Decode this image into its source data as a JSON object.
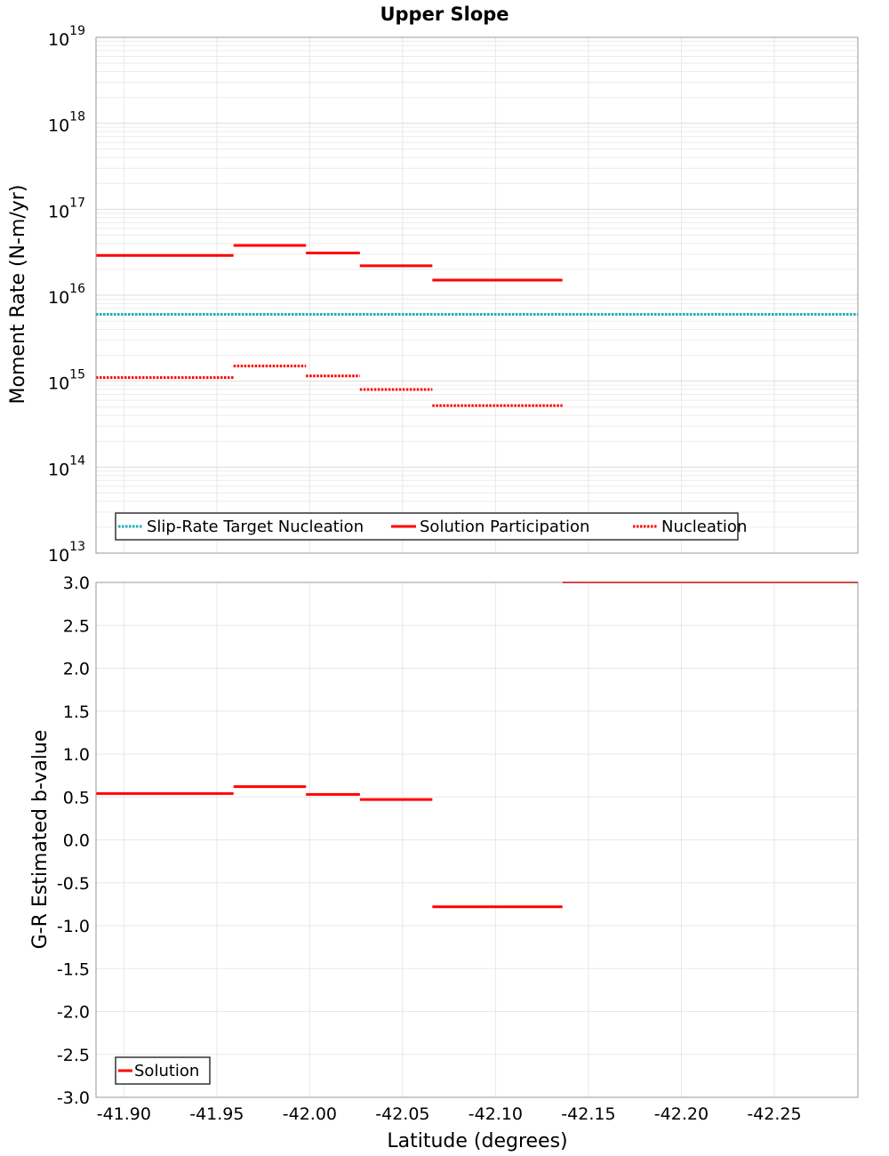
{
  "chart_data": [
    {
      "type": "line",
      "title": "Upper Slope",
      "ylabel": "Moment Rate (N-m/yr)",
      "xlabel": "",
      "yscale": "log",
      "ylim": [
        10000000000000.0,
        1e+19
      ],
      "xlim": [
        -41.885,
        -42.295
      ],
      "x_reversed": true,
      "grid": true,
      "y_ticks": [
        {
          "value": 10000000000000.0,
          "base": "10",
          "exp": "13"
        },
        {
          "value": 100000000000000.0,
          "base": "10",
          "exp": "14"
        },
        {
          "value": 1000000000000000.0,
          "base": "10",
          "exp": "15"
        },
        {
          "value": 1e+16,
          "base": "10",
          "exp": "16"
        },
        {
          "value": 1e+17,
          "base": "10",
          "exp": "17"
        },
        {
          "value": 1e+18,
          "base": "10",
          "exp": "18"
        },
        {
          "value": 1e+19,
          "base": "10",
          "exp": "19"
        }
      ],
      "legend_position": "bottom-left",
      "series": [
        {
          "name": "Slip-Rate Target Nucleation",
          "color": "#1aaeb8",
          "style": "dotted",
          "segments": [
            {
              "x0": -41.885,
              "x1": -42.295,
              "y": 6000000000000000.0
            }
          ]
        },
        {
          "name": "Solution Participation",
          "color": "#ff0000",
          "style": "solid",
          "segments": [
            {
              "x0": -41.885,
              "x1": -41.959,
              "y": 2.9e+16
            },
            {
              "x0": -41.959,
              "x1": -41.998,
              "y": 3.8e+16
            },
            {
              "x0": -41.998,
              "x1": -42.027,
              "y": 3.1e+16
            },
            {
              "x0": -42.027,
              "x1": -42.066,
              "y": 2.2e+16
            },
            {
              "x0": -42.066,
              "x1": -42.136,
              "y": 1.5e+16
            }
          ]
        },
        {
          "name": "Nucleation",
          "color": "#ff0000",
          "style": "dotted",
          "segments": [
            {
              "x0": -41.885,
              "x1": -41.959,
              "y": 1100000000000000.0
            },
            {
              "x0": -41.959,
              "x1": -41.998,
              "y": 1500000000000000.0
            },
            {
              "x0": -41.998,
              "x1": -42.027,
              "y": 1150000000000000.0
            },
            {
              "x0": -42.027,
              "x1": -42.066,
              "y": 800000000000000.0
            },
            {
              "x0": -42.066,
              "x1": -42.136,
              "y": 520000000000000.0
            }
          ]
        }
      ]
    },
    {
      "type": "line",
      "title": "",
      "ylabel": "G-R Estimated b-value",
      "xlabel": "Latitude (degrees)",
      "ylim": [
        -3.0,
        3.0
      ],
      "xlim": [
        -41.885,
        -42.295
      ],
      "x_reversed": true,
      "grid": true,
      "y_ticks": [
        "3.0",
        "2.5",
        "2.0",
        "1.5",
        "1.0",
        "0.5",
        "0.0",
        "-0.5",
        "-1.0",
        "-1.5",
        "-2.0",
        "-2.5",
        "-3.0"
      ],
      "x_ticks": [
        "-41.90",
        "-41.95",
        "-42.00",
        "-42.05",
        "-42.10",
        "-42.15",
        "-42.20",
        "-42.25"
      ],
      "legend_position": "bottom-left",
      "series": [
        {
          "name": "Solution",
          "color": "#ff0000",
          "style": "solid",
          "segments": [
            {
              "x0": -41.885,
              "x1": -41.959,
              "y": 0.54
            },
            {
              "x0": -41.959,
              "x1": -41.998,
              "y": 0.62
            },
            {
              "x0": -41.998,
              "x1": -42.027,
              "y": 0.53
            },
            {
              "x0": -42.027,
              "x1": -42.066,
              "y": 0.47
            },
            {
              "x0": -42.066,
              "x1": -42.136,
              "y": -0.78
            },
            {
              "x0": -42.136,
              "x1": -42.295,
              "y": 3.0,
              "thin": true
            }
          ]
        }
      ]
    }
  ]
}
